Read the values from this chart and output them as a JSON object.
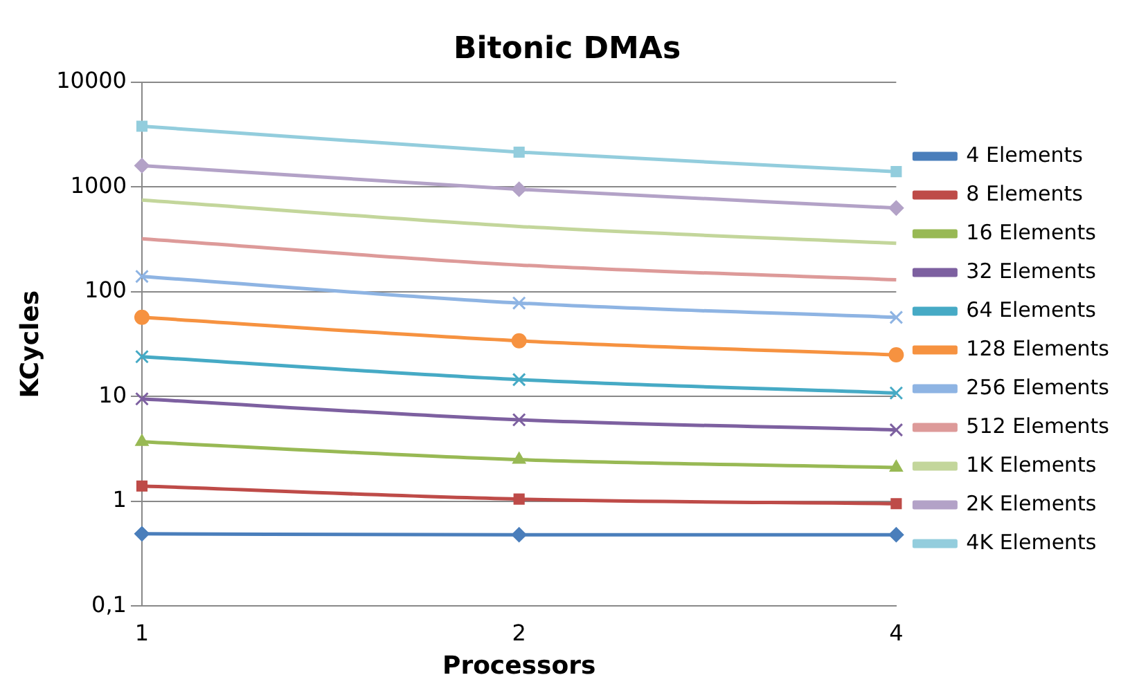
{
  "chart_data": {
    "type": "line",
    "title": "Bitonic DMAs",
    "xlabel": "Processors",
    "ylabel": "KCycles",
    "categories": [
      "1",
      "2",
      "4"
    ],
    "log": "y",
    "ylim": [
      0.1,
      10000
    ],
    "yticks": [
      {
        "value": 0.1,
        "label": "0,1"
      },
      1,
      10,
      100,
      1000,
      10000
    ],
    "grid": "y",
    "legend": "right",
    "series": [
      {
        "name": "4 Elements",
        "color": "#4a7ebb",
        "marker": "diamond",
        "values": [
          0.49,
          0.48,
          0.48
        ]
      },
      {
        "name": "8 Elements",
        "color": "#be4b48",
        "marker": "square",
        "values": [
          1.4,
          1.05,
          0.95
        ]
      },
      {
        "name": "16 Elements",
        "color": "#98b954",
        "marker": "triangle",
        "values": [
          3.7,
          2.5,
          2.1
        ]
      },
      {
        "name": "32 Elements",
        "color": "#7d60a0",
        "marker": "cross",
        "values": [
          9.5,
          6,
          4.8
        ]
      },
      {
        "name": "64 Elements",
        "color": "#46aac5",
        "marker": "cross",
        "values": [
          24,
          14.5,
          10.8
        ]
      },
      {
        "name": "128 Elements",
        "color": "#f69240",
        "marker": "circle",
        "values": [
          57,
          34,
          25
        ]
      },
      {
        "name": "256 Elements",
        "color": "#8eb4e3",
        "marker": "cross",
        "values": [
          140,
          78,
          57
        ]
      },
      {
        "name": "512 Elements",
        "color": "#dd9a99",
        "marker": "none",
        "values": [
          320,
          180,
          130
        ]
      },
      {
        "name": "1K Elements",
        "color": "#c3d69b",
        "marker": "none",
        "values": [
          750,
          420,
          290
        ]
      },
      {
        "name": "2K Elements",
        "color": "#b3a2c7",
        "marker": "diamond",
        "values": [
          1600,
          950,
          630
        ]
      },
      {
        "name": "4K Elements",
        "color": "#93cddd",
        "marker": "square",
        "values": [
          3800,
          2150,
          1400
        ]
      }
    ]
  }
}
